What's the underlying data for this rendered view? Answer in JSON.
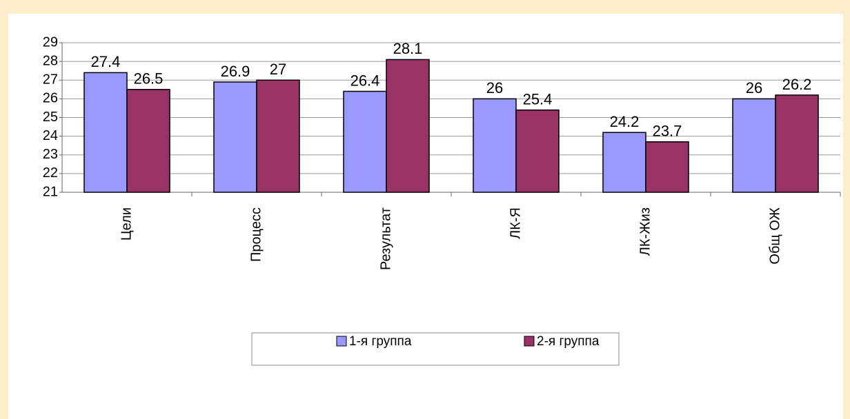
{
  "chart_data": {
    "type": "bar",
    "categories": [
      "Цели",
      "Процесс",
      "Результат",
      "ЛК-Я",
      "ЛК-Жиз",
      "Общ ОЖ"
    ],
    "series": [
      {
        "name": "1-я группа",
        "color": "#9999ff",
        "values": [
          27.4,
          26.9,
          26.4,
          26,
          24.2,
          26
        ]
      },
      {
        "name": "2-я группа",
        "color": "#993366",
        "values": [
          26.5,
          27,
          28.1,
          25.4,
          23.7,
          26.2
        ]
      }
    ],
    "ylim": [
      21,
      29
    ],
    "yticks": [
      21,
      22,
      23,
      24,
      25,
      26,
      27,
      28,
      29
    ],
    "grid": true,
    "legend": "bottom"
  }
}
